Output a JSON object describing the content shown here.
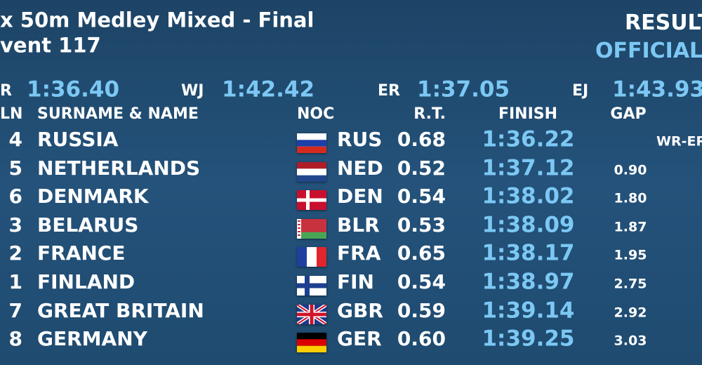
{
  "header": {
    "title": "x 50m Medley Mixed - Final",
    "event": "vent 117",
    "status_1": "RESULT",
    "status_2": "OFFICIAL"
  },
  "records": [
    {
      "label": "R",
      "time": "1:36.40"
    },
    {
      "label": "WJ",
      "time": "1:42.42"
    },
    {
      "label": "ER",
      "time": "1:37.05"
    },
    {
      "label": "EJ",
      "time": "1:43.93"
    }
  ],
  "table": {
    "columns": [
      "LN",
      "SURNAME & NAME",
      "NOC",
      "R.T.",
      "FINISH",
      "GAP"
    ],
    "rows": [
      [
        "4",
        "RUSSIA",
        "RUS",
        "0.68",
        "1:36.22",
        "WR-ER"
      ],
      [
        "5",
        "NETHERLANDS",
        "NED",
        "0.52",
        "1:37.12",
        "0.90"
      ],
      [
        "6",
        "DENMARK",
        "DEN",
        "0.54",
        "1:38.02",
        "1.80"
      ],
      [
        "3",
        "BELARUS",
        "BLR",
        "0.53",
        "1:38.09",
        "1.87"
      ],
      [
        "2",
        "FRANCE",
        "FRA",
        "0.65",
        "1:38.17",
        "1.95"
      ],
      [
        "1",
        "FINLAND",
        "FIN",
        "0.54",
        "1:38.97",
        "2.75"
      ],
      [
        "7",
        "GREAT BRITAIN",
        "GBR",
        "0.59",
        "1:39.14",
        "2.92"
      ],
      [
        "8",
        "GERMANY",
        "GER",
        "0.60",
        "1:39.25",
        "3.03"
      ]
    ]
  }
}
